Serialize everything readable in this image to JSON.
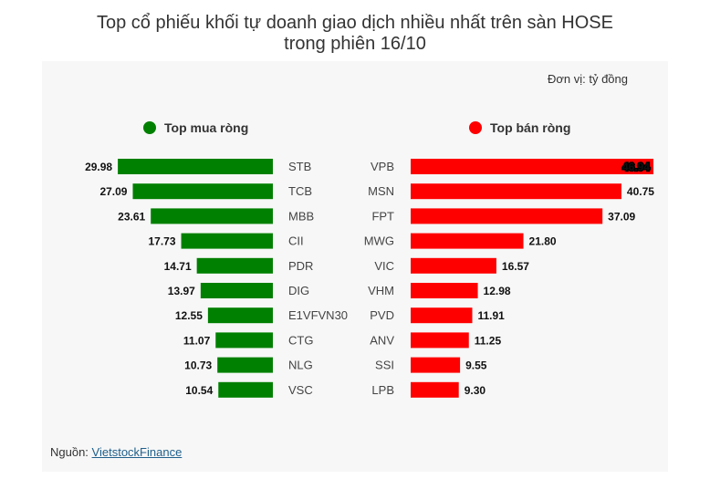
{
  "title_line1": "Top cổ phiếu khối tự doanh giao dịch nhiều nhất trên sàn HOSE",
  "title_line2": "trong phiên 16/10",
  "unit": "Đơn vị: tỷ đồng",
  "source_prefix": "Nguồn:",
  "source_link": "VietstockFinance",
  "colors": {
    "buy": "#008000",
    "sell": "#ff0000"
  },
  "chart_data": [
    {
      "type": "bar",
      "name": "Top mua ròng",
      "categories": [
        "STB",
        "TCB",
        "MBB",
        "CII",
        "PDR",
        "DIG",
        "E1VFVN30",
        "CTG",
        "NLG",
        "VSC"
      ],
      "values": [
        29.98,
        27.09,
        23.61,
        17.73,
        14.71,
        13.97,
        12.55,
        11.07,
        10.73,
        10.54
      ],
      "labels": [
        "29.98",
        "27.09",
        "23.61",
        "17.73",
        "14.71",
        "13.97",
        "12.55",
        "11.07",
        "10.73",
        "10.54"
      ],
      "orientation": "horizontal",
      "direction": "right-to-left"
    },
    {
      "type": "bar",
      "name": "Top bán ròng",
      "categories": [
        "VPB",
        "MSN",
        "FPT",
        "MWG",
        "VIC",
        "VHM",
        "PVD",
        "ANV",
        "SSI",
        "LPB"
      ],
      "values": [
        46.94,
        40.75,
        37.09,
        21.8,
        16.57,
        12.98,
        11.91,
        11.25,
        9.55,
        9.3
      ],
      "labels": [
        "46.94",
        "40.75",
        "37.09",
        "21.80",
        "16.57",
        "12.98",
        "11.91",
        "11.25",
        "9.55",
        "9.30"
      ],
      "orientation": "horizontal",
      "direction": "left-to-right"
    }
  ]
}
